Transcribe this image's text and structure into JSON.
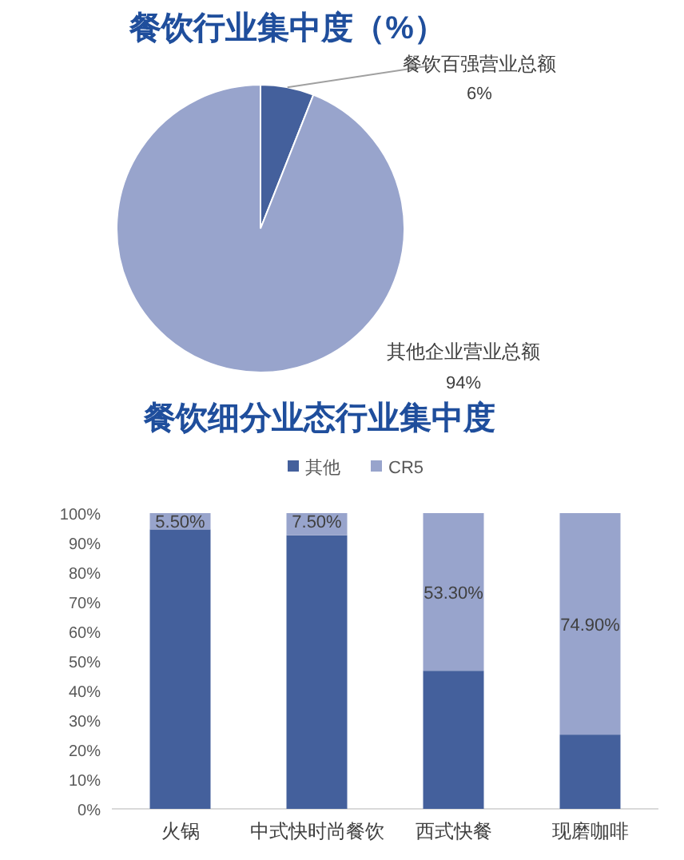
{
  "chart_data": [
    {
      "type": "pie",
      "title": "餐饮行业集中度（%）",
      "categories": [
        "餐饮百强营业总额",
        "其他企业营业总额"
      ],
      "values": [
        6,
        94
      ],
      "colors": [
        "#44609c",
        "#98a4cc"
      ],
      "value_labels": [
        "6%",
        "94%"
      ]
    },
    {
      "type": "bar",
      "title": "餐饮细分业态行业集中度",
      "stacked": true,
      "legend": "top",
      "categories": [
        "火锅",
        "中式快时尚餐饮",
        "西式快餐",
        "现磨咖啡"
      ],
      "ylim": [
        0,
        100
      ],
      "yticks": [
        {
          "value": 0,
          "label": "0%"
        },
        {
          "value": 10,
          "label": "10%"
        },
        {
          "value": 20,
          "label": "20%"
        },
        {
          "value": 30,
          "label": "30%"
        },
        {
          "value": 40,
          "label": "40%"
        },
        {
          "value": 50,
          "label": "50%"
        },
        {
          "value": 60,
          "label": "60%"
        },
        {
          "value": 70,
          "label": "70%"
        },
        {
          "value": 80,
          "label": "80%"
        },
        {
          "value": 90,
          "label": "90%"
        },
        {
          "value": 100,
          "label": "100%"
        }
      ],
      "series": [
        {
          "name": "其他",
          "color": "#44609c",
          "values": [
            94.5,
            92.5,
            46.7,
            25.1
          ]
        },
        {
          "name": "CR5",
          "color": "#98a4cc",
          "values": [
            5.5,
            7.5,
            53.3,
            74.9
          ],
          "value_labels": [
            "5.50%",
            "7.50%",
            "53.30%",
            "74.90%"
          ]
        }
      ]
    }
  ]
}
